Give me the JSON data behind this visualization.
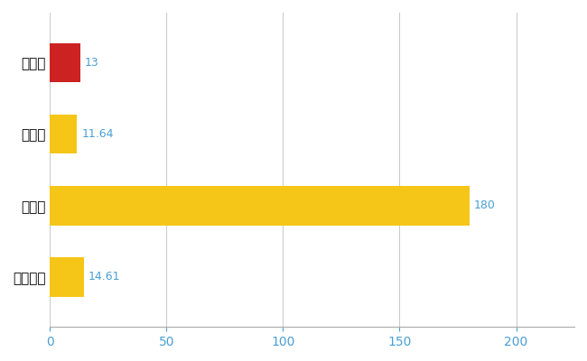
{
  "categories": [
    "嘉島町",
    "県平均",
    "県最大",
    "全国平均"
  ],
  "values": [
    13,
    11.64,
    180,
    14.61
  ],
  "labels": [
    "13",
    "11.64",
    "180",
    "14.61"
  ],
  "bar_colors": [
    "#cc2222",
    "#f5c518",
    "#f5c518",
    "#f5c518"
  ],
  "label_color": "#4a9fd4",
  "background_color": "#ffffff",
  "grid_color": "#cccccc",
  "xlim": [
    0,
    225
  ],
  "xticks": [
    0,
    50,
    100,
    150,
    200
  ],
  "bar_height": 0.55,
  "figsize": [
    6.5,
    4.0
  ],
  "dpi": 100,
  "label_fontsize": 9,
  "tick_fontsize": 10,
  "ytick_fontsize": 11
}
